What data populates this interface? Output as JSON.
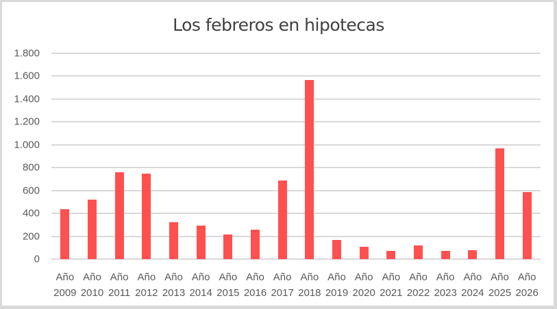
{
  "chart_data": {
    "type": "bar",
    "title": "Los febreros en hipotecas",
    "xlabel": "",
    "ylabel": "",
    "ylim": [
      0,
      1800
    ],
    "grid": true,
    "legend": null,
    "bar_color": "#ff5050",
    "y_ticks": [
      "0",
      "200",
      "400",
      "600",
      "800",
      "1.000",
      "1.200",
      "1.400",
      "1.600",
      "1.800"
    ],
    "categories": [
      "Año 2009",
      "Año 2010",
      "Año 2011",
      "Año 2012",
      "Año 2013",
      "Año 2014",
      "Año 2015",
      "Año 2016",
      "Año 2017",
      "Año 2018",
      "Año 2019",
      "Año 2020",
      "Año 2021",
      "Año 2022",
      "Año 2023",
      "Año 2024",
      "Año 2025",
      "Año 2026"
    ],
    "category_lines": [
      [
        "Año",
        "2009"
      ],
      [
        "Año",
        "2010"
      ],
      [
        "Año",
        "2011"
      ],
      [
        "Año",
        "2012"
      ],
      [
        "Año",
        "2013"
      ],
      [
        "Año",
        "2014"
      ],
      [
        "Año",
        "2015"
      ],
      [
        "Año",
        "2016"
      ],
      [
        "Año",
        "2017"
      ],
      [
        "Año",
        "2018"
      ],
      [
        "Año",
        "2019"
      ],
      [
        "Año",
        "2020"
      ],
      [
        "Año",
        "2021"
      ],
      [
        "Año",
        "2022"
      ],
      [
        "Año",
        "2023"
      ],
      [
        "Año",
        "2024"
      ],
      [
        "Año",
        "2025"
      ],
      [
        "Año",
        "2026"
      ]
    ],
    "values": [
      439,
      523,
      762,
      750,
      325,
      295,
      217,
      259,
      690,
      1565,
      170,
      110,
      69,
      122,
      69,
      75,
      966,
      589
    ]
  }
}
